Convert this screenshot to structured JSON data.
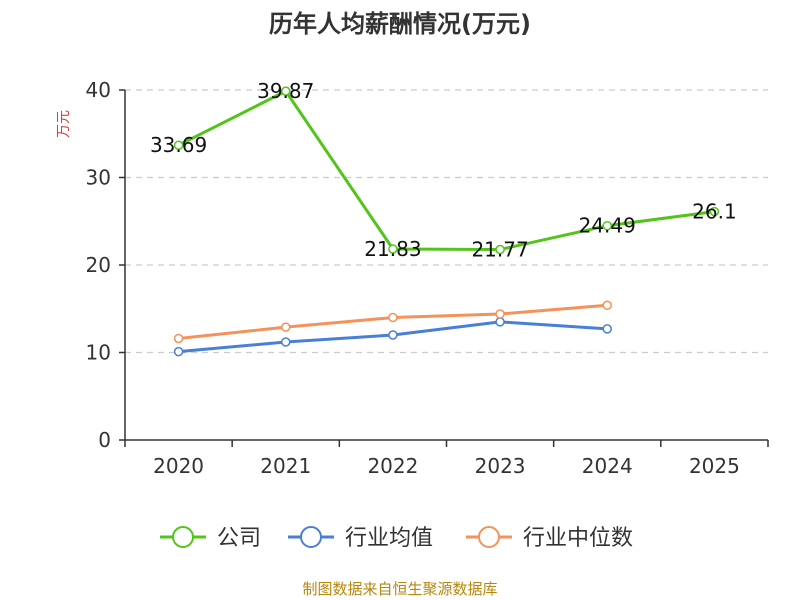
{
  "chart_data": {
    "type": "line",
    "title": "历年人均薪酬情况(万元)",
    "ylabel": "万元",
    "xlabel": "",
    "categories": [
      "2020",
      "2021",
      "2022",
      "2023",
      "2024",
      "2025"
    ],
    "ylim": [
      0,
      40
    ],
    "yticks": [
      0,
      10,
      20,
      30,
      40
    ],
    "grid": true,
    "legend_position": "bottom",
    "series": [
      {
        "name": "公司",
        "color": "#52c41a",
        "values": [
          33.69,
          39.87,
          21.83,
          21.77,
          24.49,
          26.1
        ],
        "labels": [
          "33.69",
          "39.87",
          "21.83",
          "21.77",
          "24.49",
          "26.1"
        ]
      },
      {
        "name": "行业均值",
        "color": "#4a7fd8",
        "values": [
          10.1,
          11.2,
          12.0,
          13.5,
          12.7,
          null
        ]
      },
      {
        "name": "行业中位数",
        "color": "#f4925a",
        "values": [
          11.6,
          12.9,
          14.0,
          14.4,
          15.4,
          null
        ]
      }
    ]
  },
  "source": "制图数据来自恒生聚源数据库"
}
